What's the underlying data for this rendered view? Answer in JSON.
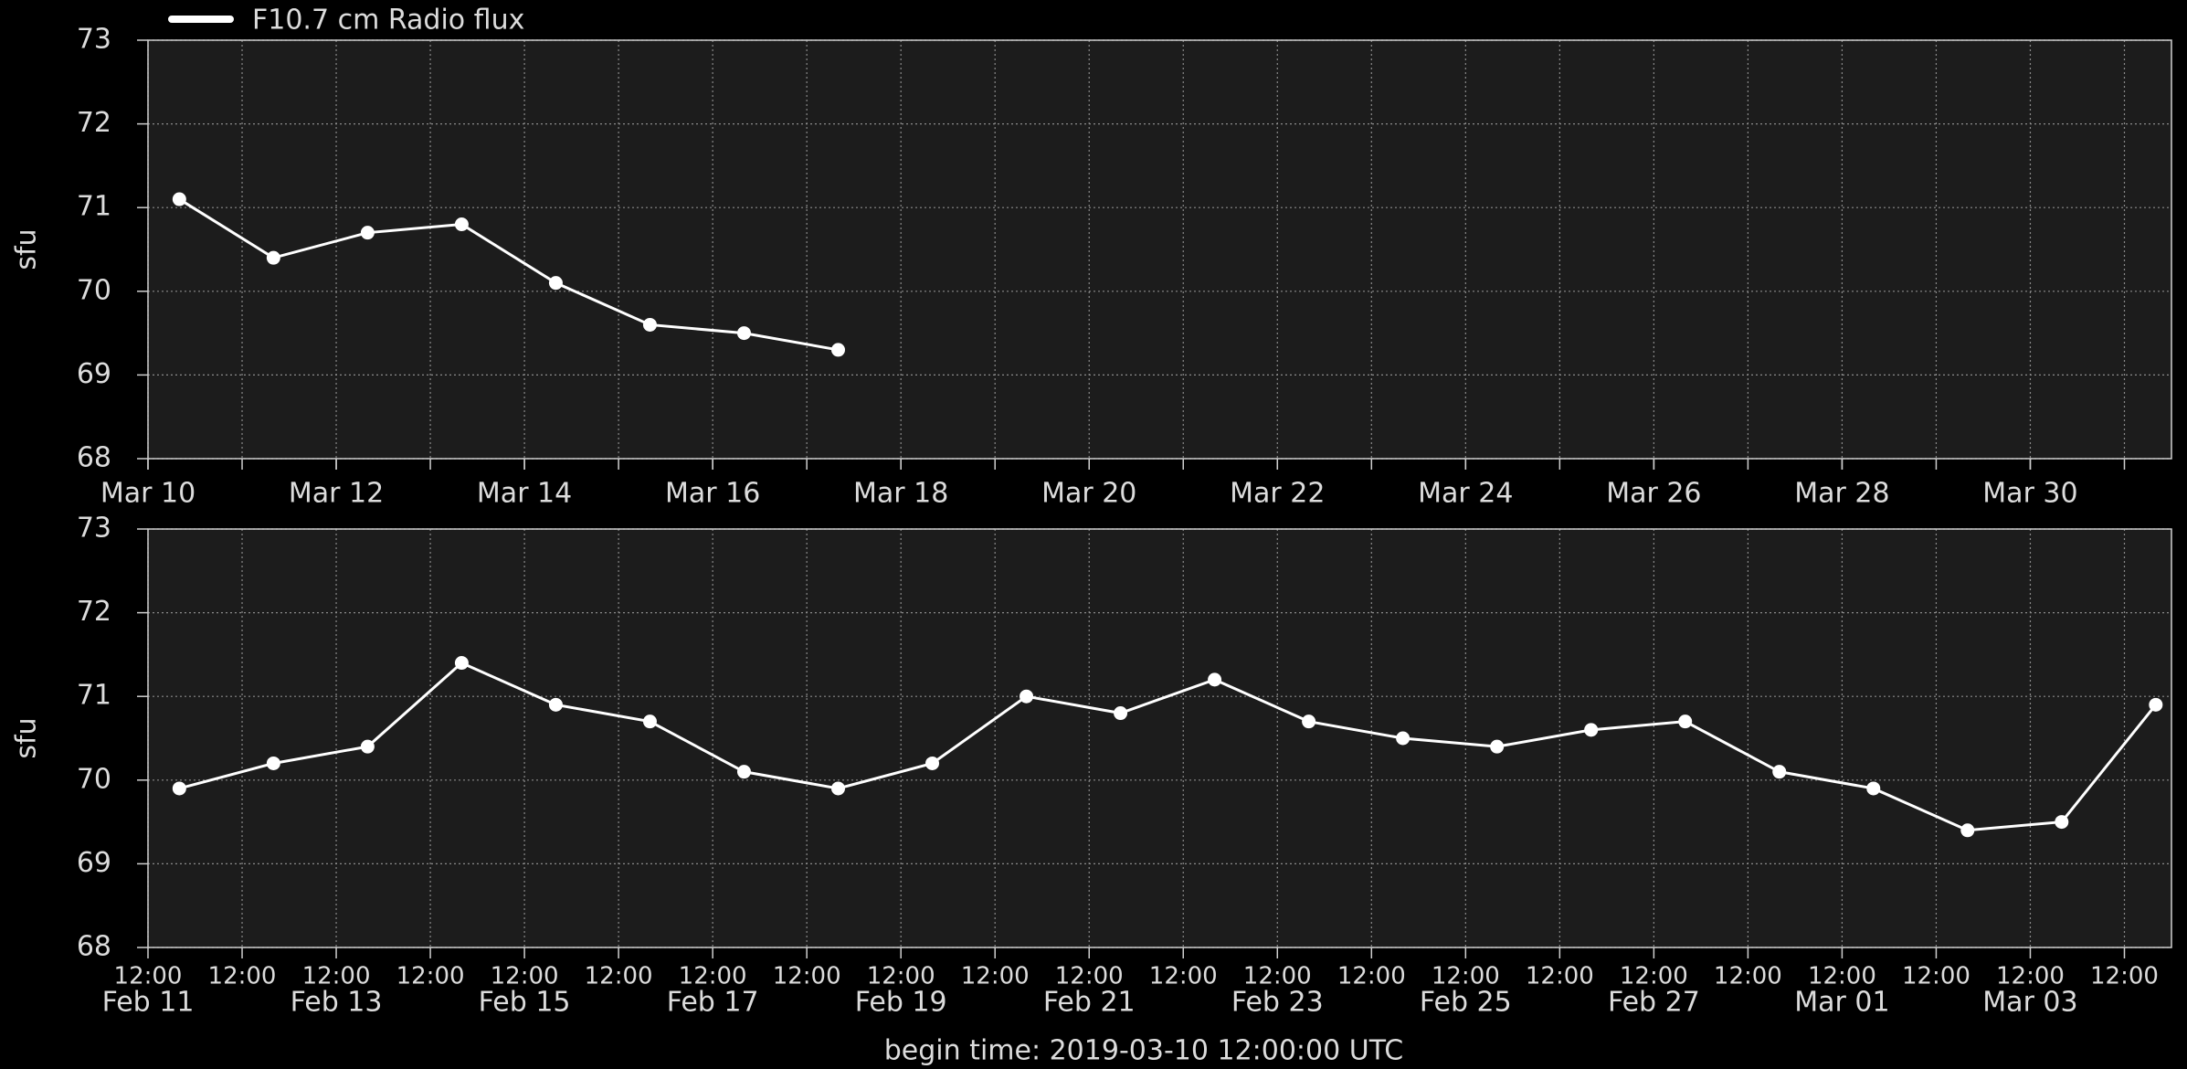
{
  "chart_data": [
    {
      "type": "line",
      "ylabel": "sfu",
      "x": [
        "Mar 10",
        "Mar 11",
        "Mar 12",
        "Mar 13",
        "Mar 14",
        "Mar 15",
        "Mar 16",
        "Mar 17"
      ],
      "series": [
        {
          "name": "F10.7 cm Radio flux",
          "color": "#ffffff",
          "values": [
            71.1,
            70.4,
            70.7,
            70.8,
            70.1,
            69.6,
            69.5,
            69.3
          ]
        }
      ],
      "xlim": [
        "Mar 10",
        "Mar 31"
      ],
      "xticks": [
        "Mar 10",
        "Mar 12",
        "Mar 14",
        "Mar 16",
        "Mar 18",
        "Mar 20",
        "Mar 22",
        "Mar 24",
        "Mar 26",
        "Mar 28",
        "Mar 30"
      ],
      "ylim": [
        68,
        73
      ],
      "yticks": [
        68,
        69,
        70,
        71,
        72,
        73
      ],
      "grid": true,
      "minor_grid": true,
      "legend": "upper left"
    },
    {
      "type": "line",
      "ylabel": "sfu",
      "x": [
        "Feb 11",
        "Feb 12",
        "Feb 13",
        "Feb 14",
        "Feb 15",
        "Feb 16",
        "Feb 17",
        "Feb 18",
        "Feb 19",
        "Feb 20",
        "Feb 21",
        "Feb 22",
        "Feb 23",
        "Feb 24",
        "Feb 25",
        "Feb 26",
        "Feb 27",
        "Feb 28",
        "Mar 01",
        "Mar 02",
        "Mar 03",
        "Mar 04"
      ],
      "series": [
        {
          "color": "#ffffff",
          "values": [
            69.9,
            70.2,
            70.4,
            71.4,
            70.9,
            70.7,
            70.1,
            69.9,
            70.2,
            71.0,
            70.8,
            71.2,
            70.7,
            70.5,
            70.4,
            70.6,
            70.7,
            70.1,
            69.9,
            69.4,
            69.5,
            70.9
          ]
        }
      ],
      "xlim": [
        "Feb 11",
        "Mar 04"
      ],
      "xticks": [
        {
          "value": "Feb 11",
          "label": "12:00"
        },
        {
          "value": "Feb 12",
          "label": "12:00"
        },
        {
          "value": "Feb 13",
          "label": "12:00"
        },
        {
          "value": "Feb 14",
          "label": "12:00"
        },
        {
          "value": "Feb 15",
          "label": "12:00"
        },
        {
          "value": "Feb 16",
          "label": "12:00"
        },
        {
          "value": "Feb 17",
          "label": "12:00"
        },
        {
          "value": "Feb 18",
          "label": "12:00"
        },
        {
          "value": "Feb 19",
          "label": "12:00"
        },
        {
          "value": "Feb 20",
          "label": "12:00"
        },
        {
          "value": "Feb 21",
          "label": "12:00"
        },
        {
          "value": "Feb 22",
          "label": "12:00"
        },
        {
          "value": "Feb 23",
          "label": "12:00"
        },
        {
          "value": "Feb 24",
          "label": "12:00"
        },
        {
          "value": "Feb 25",
          "label": "12:00"
        },
        {
          "value": "Feb 26",
          "label": "12:00"
        },
        {
          "value": "Feb 27",
          "label": "12:00"
        },
        {
          "value": "Feb 28",
          "label": "12:00"
        },
        {
          "value": "Mar 01",
          "label": "12:00"
        },
        {
          "value": "Mar 02",
          "label": "12:00"
        },
        {
          "value": "Mar 03",
          "label": "12:00"
        },
        {
          "value": "Mar 04",
          "label": "12:00"
        }
      ],
      "xticks_secondary": [
        "Feb 11",
        "Feb 13",
        "Feb 15",
        "Feb 17",
        "Feb 19",
        "Feb 21",
        "Feb 23",
        "Feb 25",
        "Feb 27",
        "Mar 01",
        "Mar 03"
      ],
      "ylim": [
        68,
        73
      ],
      "yticks": [
        68,
        69,
        70,
        71,
        72,
        73
      ],
      "grid": true
    }
  ],
  "footer": "begin time: 2019-03-10 12:00:00 UTC"
}
